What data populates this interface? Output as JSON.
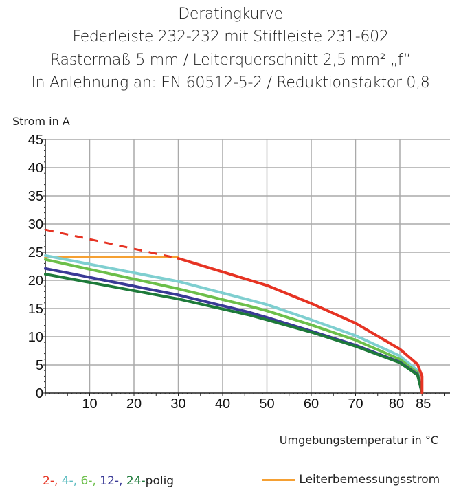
{
  "chart_data": {
    "type": "line",
    "title": [
      "Deratingkurve",
      "Federleiste 232-232 mit Stiftleiste 231-602",
      "Rastermaß 5 mm / Leiterquerschnitt 2,5 mm² „f“",
      "In Anlehnung an: EN 60512-5-2 / Reduktionsfaktor 0,8"
    ],
    "ylabel": "Strom in A",
    "xlabel": "Umgebungstemperatur in °C",
    "xlim": [
      0,
      85
    ],
    "ylim": [
      0,
      45
    ],
    "xticks": [
      "10",
      "20",
      "30",
      "40",
      "50",
      "60",
      "70",
      "80",
      "85"
    ],
    "yticks": [
      "0",
      "5",
      "10",
      "15",
      "20",
      "25",
      "30",
      "35",
      "40",
      "45"
    ],
    "grid": true,
    "series": [
      {
        "name": "2-",
        "color": "#e63323",
        "x": [
          30,
          40,
          50,
          60,
          70,
          80,
          84,
          85,
          85
        ],
        "y": [
          23.9,
          21.5,
          19.1,
          15.9,
          12.4,
          7.8,
          5.1,
          3,
          0
        ]
      },
      {
        "name": "2- (extrapoliert)",
        "color": "#e63323",
        "dashed": true,
        "x": [
          0,
          30
        ],
        "y": [
          29.0,
          23.9
        ]
      },
      {
        "name": "4-",
        "color": "#7fcfd0",
        "x": [
          0,
          30,
          45.7,
          50,
          60,
          70,
          80,
          84,
          85
        ],
        "y": [
          24.4,
          19.8,
          16.6,
          15.7,
          13.0,
          10.2,
          6.6,
          4,
          0
        ]
      },
      {
        "name": "6-",
        "color": "#6cbf4a",
        "x": [
          0,
          30,
          45.7,
          50,
          60,
          70,
          80,
          84,
          85
        ],
        "y": [
          23.7,
          18.5,
          15.5,
          14.6,
          12.1,
          9.4,
          6.0,
          3.6,
          0
        ]
      },
      {
        "name": "12-",
        "color": "#3a3a96",
        "x": [
          0,
          30,
          45.7,
          50,
          60,
          70,
          80,
          84,
          85
        ],
        "y": [
          22.1,
          17.4,
          14.4,
          13.4,
          11.0,
          8.5,
          5.5,
          3.3,
          0
        ]
      },
      {
        "name": "24-",
        "color": "#1e7a3a",
        "x": [
          0,
          30,
          45.7,
          50,
          60,
          70,
          80,
          84,
          85
        ],
        "y": [
          21.1,
          16.7,
          13.9,
          13.0,
          10.8,
          8.3,
          5.4,
          3.2,
          0
        ]
      },
      {
        "name": "Leiterbemessungsstrom",
        "color": "#f5a033",
        "x": [
          0,
          30
        ],
        "y": [
          24.1,
          24.1
        ]
      }
    ],
    "legend": {
      "placement": "bottom",
      "suffix": "polig",
      "current_label": "Leiterbemessungsstrom"
    }
  }
}
